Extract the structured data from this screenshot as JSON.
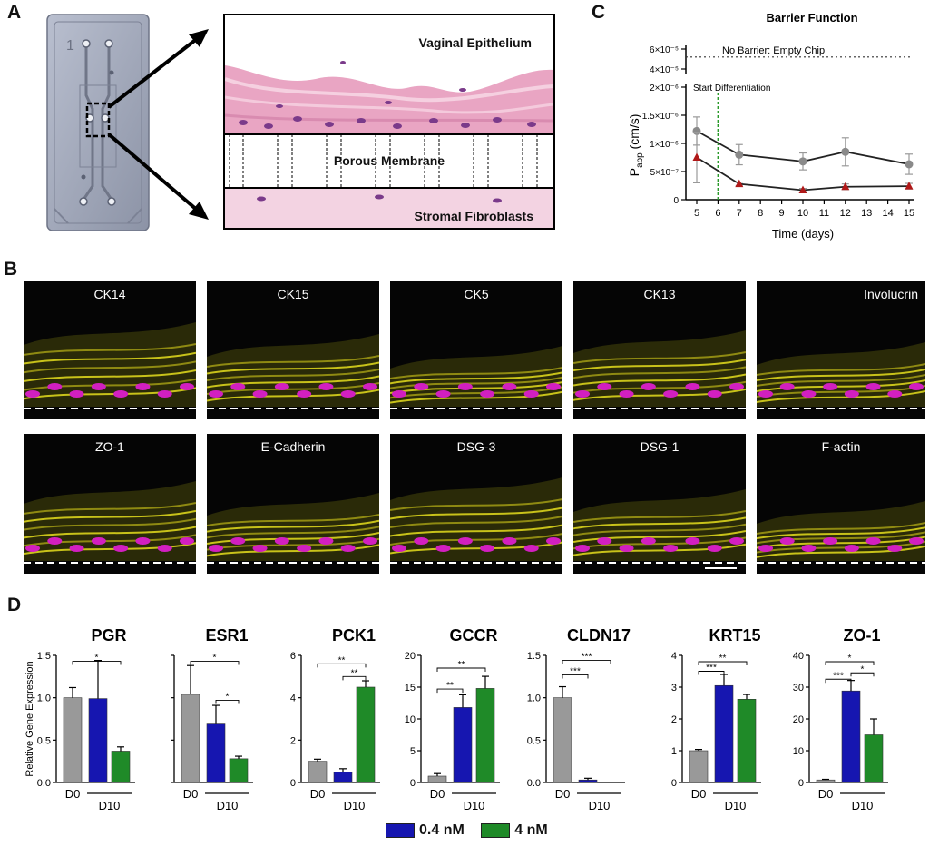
{
  "panels": {
    "a": "A",
    "b": "B",
    "c": "C",
    "d": "D"
  },
  "panel_a": {
    "chip_number": "1",
    "labels": {
      "top": "Vaginal Epithelium",
      "middle": "Porous Membrane",
      "bottom": "Stromal Fibroblasts"
    }
  },
  "stain_labels": {
    "row1": [
      "CK14",
      "CK15",
      "CK5",
      "CK13",
      "Involucrin"
    ],
    "row2": [
      "ZO-1",
      "E-Cadherin",
      "DSG-3",
      "DSG-1",
      "F-actin"
    ]
  },
  "chart_data": [
    {
      "type": "line",
      "title": "Barrier Function",
      "xlabel": "Time (days)",
      "ylabel": "P",
      "ylabel_sub": "app",
      "ylabel_unit": " (cm/s)",
      "x_ticks": [
        5,
        6,
        7,
        8,
        9,
        10,
        11,
        12,
        13,
        14,
        15
      ],
      "y_ticks_lower": [
        "0",
        "5×10⁻⁷",
        "1×10⁻⁶",
        "1.5×10⁻⁶",
        "2×10⁻⁶"
      ],
      "y_ticks_upper": [
        "4×10⁻⁵",
        "6×10⁻⁵"
      ],
      "annotation_empty": "No Barrier: Empty  Chip",
      "empty_chip_value": 5.2e-05,
      "annotation_start": "Start Differentiation",
      "start_differentiation_day": 6,
      "series": [
        {
          "color": "#8a8a8a",
          "marker": "circle",
          "x": [
            5,
            7,
            10,
            12,
            15
          ],
          "y": [
            1.22e-06,
            8e-07,
            6.8e-07,
            8.5e-07,
            6.3e-07
          ],
          "err": [
            2.5e-07,
            1.8e-07,
            1.5e-07,
            2.5e-07,
            1.8e-07
          ]
        },
        {
          "color": "#b01818",
          "marker": "triangle",
          "x": [
            5,
            7,
            10,
            12,
            15
          ],
          "y": [
            7.5e-07,
            2.8e-07,
            1.7e-07,
            2.3e-07,
            2.4e-07
          ],
          "err": [
            4.5e-07,
            3e-08,
            3e-08,
            5e-08,
            5e-08
          ]
        }
      ]
    },
    {
      "type": "bar",
      "ylabel": "Relative Gene Expression",
      "x_group_labels": {
        "d0": "D0",
        "d10": "D10"
      },
      "legend": [
        {
          "label": "0.4 nM",
          "color": "#1616b0"
        },
        {
          "label": "4 nM",
          "color": "#1f8a28"
        }
      ],
      "bar_colors": [
        "#999999",
        "#1616b0",
        "#1f8a28"
      ],
      "subcharts": [
        {
          "gene": "PGR",
          "values": [
            1.0,
            0.99,
            0.37
          ],
          "errors": [
            0.12,
            0.45,
            0.05
          ],
          "ylim": [
            0,
            1.5
          ],
          "ticks": [
            "0.0",
            "0.5",
            "1.0",
            "1.5"
          ],
          "tick_values": [
            0,
            0.5,
            1.0,
            1.5
          ],
          "sig": [
            {
              "from": 0,
              "to": 2,
              "label": "*",
              "level": 1.43
            }
          ]
        },
        {
          "gene": "ESR1",
          "values": [
            1.04,
            0.69,
            0.28
          ],
          "errors": [
            0.34,
            0.22,
            0.03
          ],
          "ylim": [
            0,
            1.5
          ],
          "ticks": [],
          "tick_values": [
            0,
            0.5,
            1.0,
            1.5
          ],
          "sig": [
            {
              "from": 0,
              "to": 2,
              "label": "*",
              "level": 1.43
            },
            {
              "from": 1,
              "to": 2,
              "label": "*",
              "level": 0.97
            }
          ]
        },
        {
          "gene": "PCK1",
          "values": [
            1.0,
            0.5,
            4.5
          ],
          "errors": [
            0.1,
            0.15,
            0.3
          ],
          "ylim": [
            0,
            6
          ],
          "ticks": [
            "0",
            "2",
            "4",
            "6"
          ],
          "tick_values": [
            0,
            2,
            4,
            6
          ],
          "sig": [
            {
              "from": 0,
              "to": 2,
              "label": "**",
              "level": 5.6
            },
            {
              "from": 1,
              "to": 2,
              "label": "**",
              "level": 5.0
            }
          ]
        },
        {
          "gene": "GCCR",
          "values": [
            1.0,
            11.8,
            14.8
          ],
          "errors": [
            0.4,
            2.0,
            1.9
          ],
          "ylim": [
            0,
            20
          ],
          "ticks": [
            "0",
            "5",
            "10",
            "15",
            "20"
          ],
          "tick_values": [
            0,
            5,
            10,
            15,
            20
          ],
          "sig": [
            {
              "from": 0,
              "to": 2,
              "label": "**",
              "level": 18.0
            },
            {
              "from": 0,
              "to": 1,
              "label": "**",
              "level": 14.7
            }
          ]
        },
        {
          "gene": "CLDN17",
          "values": [
            1.0,
            0.03,
            0.0
          ],
          "errors": [
            0.13,
            0.02,
            0.0
          ],
          "ylim": [
            0,
            1.5
          ],
          "ticks": [
            "0.0",
            "0.5",
            "1.0",
            "1.5"
          ],
          "tick_values": [
            0,
            0.5,
            1.0,
            1.5
          ],
          "sig": [
            {
              "from": 0,
              "to": 2,
              "label": "***",
              "level": 1.44
            },
            {
              "from": 0,
              "to": 1,
              "label": "***",
              "level": 1.27
            }
          ]
        },
        {
          "gene": "KRT15",
          "values": [
            1.0,
            3.05,
            2.62
          ],
          "errors": [
            0.04,
            0.35,
            0.15
          ],
          "ylim": [
            0,
            4
          ],
          "ticks": [
            "0",
            "1",
            "2",
            "3",
            "4"
          ],
          "tick_values": [
            0,
            1,
            2,
            3,
            4
          ],
          "sig": [
            {
              "from": 0,
              "to": 2,
              "label": "**",
              "level": 3.8
            },
            {
              "from": 0,
              "to": 1,
              "label": "***",
              "level": 3.5
            }
          ]
        },
        {
          "gene": "ZO-1",
          "values": [
            0.8,
            28.8,
            15.0
          ],
          "errors": [
            0.2,
            3.3,
            5.0
          ],
          "ylim": [
            0,
            40
          ],
          "ticks": [
            "0",
            "10",
            "20",
            "30",
            "40"
          ],
          "tick_values": [
            0,
            10,
            20,
            30,
            40
          ],
          "sig": [
            {
              "from": 0,
              "to": 2,
              "label": "*",
              "level": 38.0
            },
            {
              "from": 1,
              "to": 2,
              "label": "*",
              "level": 34.5
            },
            {
              "from": 0,
              "to": 1,
              "label": "***",
              "level": 32.5
            }
          ]
        }
      ]
    }
  ]
}
